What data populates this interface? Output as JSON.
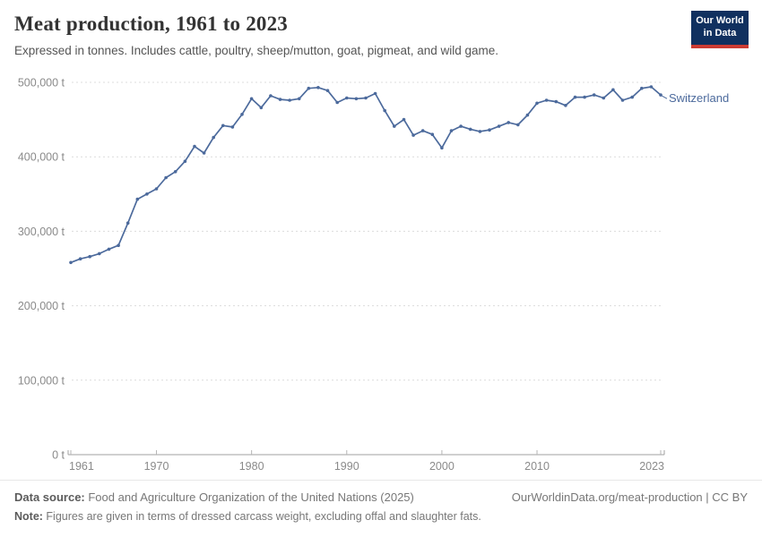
{
  "header": {
    "title": "Meat production, 1961 to 2023",
    "subtitle": "Expressed in tonnes. Includes cattle, poultry, sheep/mutton, goat, pigmeat, and wild game."
  },
  "logo": {
    "line1": "Our World",
    "line2": "in Data",
    "bg_color": "#10305f",
    "accent_color": "#cc3b33"
  },
  "chart_data": {
    "type": "line",
    "title": "Meat production, 1961 to 2023",
    "xlabel": "",
    "ylabel": "tonnes",
    "xlim": [
      1961,
      2023
    ],
    "ylim": [
      0,
      500000
    ],
    "grid": "horizontal-dashed",
    "legend_position": "end-of-line-label",
    "x_ticks": [
      1961,
      1970,
      1980,
      1990,
      2000,
      2010,
      2023
    ],
    "y_ticks": [
      {
        "value": 0,
        "label": "0 t"
      },
      {
        "value": 100000,
        "label": "100,000 t"
      },
      {
        "value": 200000,
        "label": "200,000 t"
      },
      {
        "value": 300000,
        "label": "300,000 t"
      },
      {
        "value": 400000,
        "label": "400,000 t"
      },
      {
        "value": 500000,
        "label": "500,000 t"
      }
    ],
    "x": [
      1961,
      1962,
      1963,
      1964,
      1965,
      1966,
      1967,
      1968,
      1969,
      1970,
      1971,
      1972,
      1973,
      1974,
      1975,
      1976,
      1977,
      1978,
      1979,
      1980,
      1981,
      1982,
      1983,
      1984,
      1985,
      1986,
      1987,
      1988,
      1989,
      1990,
      1991,
      1992,
      1993,
      1994,
      1995,
      1996,
      1997,
      1998,
      1999,
      2000,
      2001,
      2002,
      2003,
      2004,
      2005,
      2006,
      2007,
      2008,
      2009,
      2010,
      2011,
      2012,
      2013,
      2014,
      2015,
      2016,
      2017,
      2018,
      2019,
      2020,
      2021,
      2022,
      2023
    ],
    "series": [
      {
        "name": "Switzerland",
        "color": "#4C6A9C",
        "values": [
          258000,
          263000,
          266000,
          270000,
          276000,
          281000,
          311000,
          343000,
          350000,
          357000,
          372000,
          380000,
          394000,
          414000,
          405000,
          426000,
          442000,
          440000,
          457000,
          478000,
          466000,
          482000,
          477000,
          476000,
          478000,
          492000,
          493000,
          489000,
          473000,
          479000,
          478000,
          479000,
          485000,
          462000,
          441000,
          450000,
          429000,
          435000,
          430000,
          412000,
          435000,
          441000,
          437000,
          434000,
          436000,
          441000,
          446000,
          443000,
          456000,
          472000,
          476000,
          474000,
          469000,
          480000,
          480000,
          483000,
          479000,
          490000,
          476000,
          480000,
          492000,
          494000,
          483000
        ]
      }
    ]
  },
  "footer": {
    "source_label": "Data source:",
    "source_text": " Food and Agriculture Organization of the United Nations (2025)",
    "link": "OurWorldinData.org/meat-production | CC BY",
    "note_label": "Note:",
    "note_text": " Figures are given in terms of dressed carcass weight, excluding offal and slaughter fats."
  }
}
